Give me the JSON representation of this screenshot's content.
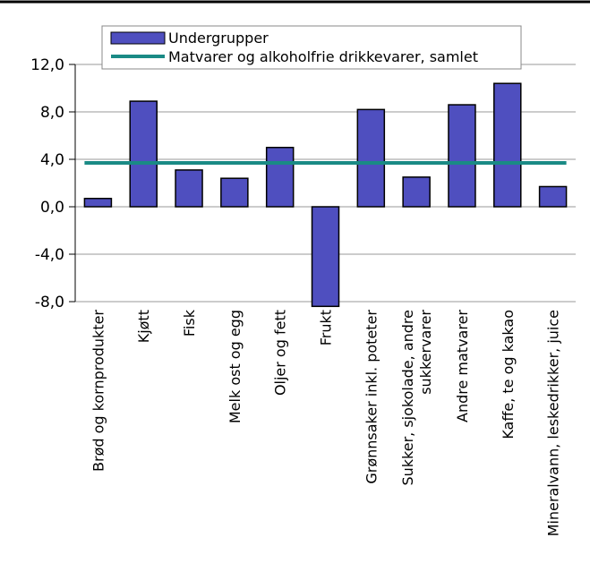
{
  "chart_data": {
    "type": "bar",
    "categories": [
      [
        "Brød og kornprodukter"
      ],
      [
        "Kjøtt"
      ],
      [
        "Fisk"
      ],
      [
        "Melk ost og egg"
      ],
      [
        "Oljer og fett"
      ],
      [
        "Frukt"
      ],
      [
        "Grønnsaker inkl. poteter"
      ],
      [
        "Sukker, sjokolade, andre",
        "sukkervarer"
      ],
      [
        "Andre matvarer"
      ],
      [
        "Kaffe, te og kakao"
      ],
      [
        "Mineralvann, leskedrikker, juice"
      ]
    ],
    "series": [
      {
        "name": "Undergrupper",
        "type": "bar",
        "color": "#4f4fbf",
        "values": [
          0.7,
          8.9,
          3.1,
          2.4,
          5.0,
          -8.4,
          8.2,
          2.5,
          8.6,
          10.4,
          1.7
        ]
      },
      {
        "name": "Matvarer og alkoholfrie drikkevarer, samlet",
        "type": "line",
        "color": "#1a8a85",
        "value": 3.7
      }
    ],
    "yticks": [
      "12,0",
      "8,0",
      "4,0",
      "0,0",
      "-4,0",
      "-8,0"
    ],
    "ytick_values": [
      12,
      8,
      4,
      0,
      -4,
      -8
    ],
    "ylim": [
      -8,
      12
    ],
    "grid": true,
    "legend_position": "top"
  }
}
